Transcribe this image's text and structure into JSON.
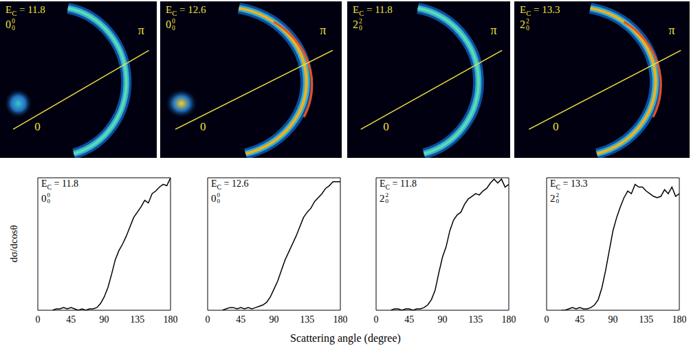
{
  "xlabel": "Scattering angle (degree)",
  "images": [
    {
      "energy": "EC = 11.8",
      "state": {
        "base": "0",
        "sup": "0",
        "sub": "0"
      },
      "line_start": "0",
      "line_end": "π"
    },
    {
      "energy": "EC = 12.6",
      "state": {
        "base": "0",
        "sup": "0",
        "sub": "0"
      },
      "line_start": "0",
      "line_end": "π"
    },
    {
      "energy": "EC = 11.8",
      "state": {
        "base": "2",
        "sup": "2",
        "sub": "0"
      },
      "line_start": "0",
      "line_end": "π"
    },
    {
      "energy": "EC = 13.3",
      "state": {
        "base": "2",
        "sup": "2",
        "sub": "0"
      },
      "line_start": "0",
      "line_end": "π"
    }
  ],
  "chart_data": [
    {
      "type": "line",
      "annotation": "EC = 11.8",
      "state": {
        "base": "0",
        "sup": "0",
        "sub": "0"
      },
      "ylabel": "dσ/dcosθ",
      "x": [
        20,
        25,
        30,
        35,
        40,
        45,
        50,
        55,
        60,
        65,
        70,
        75,
        80,
        85,
        90,
        95,
        100,
        105,
        110,
        115,
        120,
        125,
        130,
        135,
        140,
        145,
        150,
        155,
        160,
        165,
        170,
        175,
        180
      ],
      "values": [
        0,
        0.01,
        0.01,
        0.02,
        0.01,
        0.02,
        0.01,
        0,
        0.01,
        0,
        0.01,
        0.01,
        0.02,
        0.05,
        0.1,
        0.17,
        0.27,
        0.38,
        0.45,
        0.5,
        0.56,
        0.63,
        0.7,
        0.74,
        0.78,
        0.83,
        0.81,
        0.88,
        0.9,
        0.93,
        0.95,
        0.94,
        1.0
      ],
      "xlim": [
        0,
        180
      ],
      "xticks": [
        0,
        45,
        90,
        135,
        180
      ],
      "ylim": [
        0,
        1
      ],
      "tick_labels": "x",
      "color": "#000000"
    },
    {
      "type": "line",
      "annotation": "EC = 12.6",
      "state": {
        "base": "0",
        "sup": "0",
        "sub": "0"
      },
      "x": [
        20,
        25,
        30,
        35,
        40,
        45,
        50,
        55,
        60,
        65,
        70,
        75,
        80,
        85,
        90,
        95,
        100,
        105,
        110,
        115,
        120,
        125,
        130,
        135,
        140,
        145,
        150,
        155,
        160,
        165,
        170,
        175,
        180
      ],
      "values": [
        0,
        0.01,
        0.02,
        0.02,
        0.01,
        0.02,
        0.01,
        0.02,
        0.01,
        0.02,
        0.03,
        0.04,
        0.06,
        0.1,
        0.16,
        0.22,
        0.3,
        0.38,
        0.44,
        0.5,
        0.56,
        0.63,
        0.7,
        0.74,
        0.77,
        0.82,
        0.85,
        0.88,
        0.92,
        0.94,
        0.97,
        0.97,
        0.97
      ],
      "xlim": [
        0,
        180
      ],
      "xticks": [
        0,
        45,
        90,
        135,
        180
      ],
      "ylim": [
        0,
        1
      ],
      "tick_labels": "x",
      "color": "#000000"
    },
    {
      "type": "line",
      "annotation": "EC = 11.8",
      "state": {
        "base": "2",
        "sup": "2",
        "sub": "0"
      },
      "x": [
        20,
        25,
        30,
        35,
        40,
        45,
        50,
        55,
        60,
        65,
        70,
        75,
        80,
        85,
        90,
        95,
        100,
        105,
        110,
        115,
        120,
        125,
        130,
        135,
        140,
        145,
        150,
        155,
        160,
        165,
        170,
        175,
        180
      ],
      "values": [
        0,
        0.01,
        0.01,
        0,
        0.01,
        0.01,
        0,
        0.01,
        0.01,
        0.02,
        0.04,
        0.08,
        0.15,
        0.28,
        0.4,
        0.48,
        0.6,
        0.68,
        0.72,
        0.74,
        0.8,
        0.84,
        0.86,
        0.88,
        0.87,
        0.9,
        0.92,
        0.96,
        0.99,
        0.96,
        0.99,
        0.93,
        0.95
      ],
      "xlim": [
        0,
        180
      ],
      "xticks": [
        0,
        45,
        90,
        135,
        180
      ],
      "ylim": [
        0,
        1
      ],
      "tick_labels": "x",
      "color": "#000000"
    },
    {
      "type": "line",
      "annotation": "EC = 13.3",
      "state": {
        "base": "2",
        "sup": "2",
        "sub": "0"
      },
      "x": [
        20,
        25,
        30,
        35,
        40,
        45,
        50,
        55,
        60,
        65,
        70,
        75,
        80,
        85,
        90,
        95,
        100,
        105,
        110,
        115,
        120,
        125,
        130,
        135,
        140,
        145,
        150,
        155,
        160,
        165,
        170,
        175,
        180
      ],
      "values": [
        0,
        0,
        0.01,
        0.02,
        0.01,
        0.02,
        0.01,
        0.01,
        0.02,
        0.04,
        0.08,
        0.17,
        0.3,
        0.45,
        0.6,
        0.7,
        0.78,
        0.85,
        0.9,
        0.88,
        0.95,
        0.93,
        0.93,
        0.9,
        0.88,
        0.86,
        0.85,
        0.86,
        0.91,
        0.88,
        0.93,
        0.86,
        0.88
      ],
      "xlim": [
        0,
        180
      ],
      "xticks": [
        0,
        45,
        90,
        135,
        180
      ],
      "ylim": [
        0,
        1
      ],
      "tick_labels": "x",
      "color": "#000000"
    }
  ]
}
